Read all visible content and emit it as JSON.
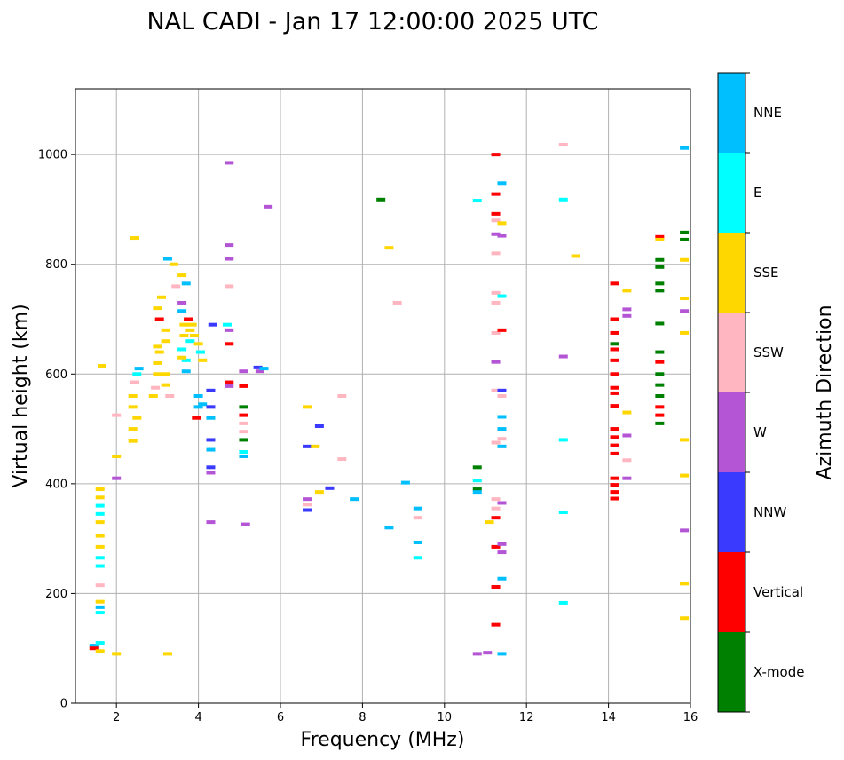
{
  "chart_data": {
    "type": "scatter",
    "title": "NAL CADI - Jan 17 12:00:00 2025 UTC",
    "xlabel": "Frequency (MHz)",
    "ylabel": "Virtual height (km)",
    "xlim": [
      1,
      16
    ],
    "ylim": [
      0,
      1120
    ],
    "xticks": [
      2,
      4,
      6,
      8,
      10,
      12,
      14,
      16
    ],
    "yticks": [
      0,
      200,
      400,
      600,
      800,
      1000
    ],
    "grid": true,
    "colorbar": {
      "label": "Azimuth Direction",
      "categories": [
        {
          "name": "X-mode",
          "color": "#008000"
        },
        {
          "name": "Vertical",
          "color": "#ff0000"
        },
        {
          "name": "NNW",
          "color": "#3a3aff"
        },
        {
          "name": "W",
          "color": "#b455d6"
        },
        {
          "name": "SSW",
          "color": "#ffb6c1"
        },
        {
          "name": "SSE",
          "color": "#ffd700"
        },
        {
          "name": "E",
          "color": "#00ffff"
        },
        {
          "name": "NNE",
          "color": "#00bfff"
        }
      ]
    },
    "points": [
      {
        "f": 1.45,
        "h": 105,
        "d": "NNE"
      },
      {
        "f": 1.45,
        "h": 100,
        "d": "Vertical"
      },
      {
        "f": 1.6,
        "h": 95,
        "d": "SSE"
      },
      {
        "f": 1.6,
        "h": 110,
        "d": "E"
      },
      {
        "f": 1.6,
        "h": 165,
        "d": "E"
      },
      {
        "f": 1.6,
        "h": 175,
        "d": "NNE"
      },
      {
        "f": 1.6,
        "h": 185,
        "d": "SSE"
      },
      {
        "f": 1.6,
        "h": 215,
        "d": "SSW"
      },
      {
        "f": 1.6,
        "h": 250,
        "d": "E"
      },
      {
        "f": 1.6,
        "h": 265,
        "d": "E"
      },
      {
        "f": 1.6,
        "h": 285,
        "d": "SSE"
      },
      {
        "f": 1.6,
        "h": 305,
        "d": "SSE"
      },
      {
        "f": 1.6,
        "h": 330,
        "d": "SSE"
      },
      {
        "f": 1.6,
        "h": 345,
        "d": "E"
      },
      {
        "f": 1.6,
        "h": 360,
        "d": "E"
      },
      {
        "f": 1.6,
        "h": 375,
        "d": "SSE"
      },
      {
        "f": 1.6,
        "h": 390,
        "d": "SSE"
      },
      {
        "f": 1.65,
        "h": 615,
        "d": "SSE"
      },
      {
        "f": 2.0,
        "h": 90,
        "d": "SSE"
      },
      {
        "f": 2.0,
        "h": 410,
        "d": "W"
      },
      {
        "f": 2.0,
        "h": 450,
        "d": "SSE"
      },
      {
        "f": 2.0,
        "h": 525,
        "d": "SSW"
      },
      {
        "f": 2.4,
        "h": 478,
        "d": "SSE"
      },
      {
        "f": 2.4,
        "h": 500,
        "d": "SSE"
      },
      {
        "f": 2.4,
        "h": 540,
        "d": "SSE"
      },
      {
        "f": 2.4,
        "h": 560,
        "d": "SSE"
      },
      {
        "f": 2.45,
        "h": 585,
        "d": "SSW"
      },
      {
        "f": 2.5,
        "h": 520,
        "d": "SSE"
      },
      {
        "f": 2.5,
        "h": 600,
        "d": "E"
      },
      {
        "f": 2.55,
        "h": 610,
        "d": "NNE"
      },
      {
        "f": 2.45,
        "h": 848,
        "d": "SSE"
      },
      {
        "f": 2.9,
        "h": 560,
        "d": "SSE"
      },
      {
        "f": 2.95,
        "h": 575,
        "d": "SSW"
      },
      {
        "f": 3.0,
        "h": 600,
        "d": "SSE"
      },
      {
        "f": 3.0,
        "h": 620,
        "d": "SSE"
      },
      {
        "f": 3.05,
        "h": 640,
        "d": "SSE"
      },
      {
        "f": 3.0,
        "h": 650,
        "d": "SSE"
      },
      {
        "f": 3.05,
        "h": 700,
        "d": "Vertical"
      },
      {
        "f": 3.0,
        "h": 720,
        "d": "SSE"
      },
      {
        "f": 3.1,
        "h": 740,
        "d": "SSE"
      },
      {
        "f": 3.2,
        "h": 680,
        "d": "SSE"
      },
      {
        "f": 3.2,
        "h": 660,
        "d": "SSE"
      },
      {
        "f": 3.2,
        "h": 600,
        "d": "SSE"
      },
      {
        "f": 3.2,
        "h": 580,
        "d": "SSE"
      },
      {
        "f": 3.3,
        "h": 560,
        "d": "SSW"
      },
      {
        "f": 3.25,
        "h": 810,
        "d": "NNE"
      },
      {
        "f": 3.4,
        "h": 800,
        "d": "SSE"
      },
      {
        "f": 3.45,
        "h": 760,
        "d": "SSW"
      },
      {
        "f": 3.6,
        "h": 730,
        "d": "W"
      },
      {
        "f": 3.6,
        "h": 715,
        "d": "NNE"
      },
      {
        "f": 3.65,
        "h": 690,
        "d": "SSE"
      },
      {
        "f": 3.65,
        "h": 670,
        "d": "SSE"
      },
      {
        "f": 3.6,
        "h": 645,
        "d": "E"
      },
      {
        "f": 3.7,
        "h": 625,
        "d": "E"
      },
      {
        "f": 3.7,
        "h": 605,
        "d": "NNE"
      },
      {
        "f": 3.6,
        "h": 630,
        "d": "SSE"
      },
      {
        "f": 3.75,
        "h": 700,
        "d": "Vertical"
      },
      {
        "f": 3.8,
        "h": 680,
        "d": "SSE"
      },
      {
        "f": 3.8,
        "h": 660,
        "d": "E"
      },
      {
        "f": 3.85,
        "h": 690,
        "d": "SSE"
      },
      {
        "f": 3.9,
        "h": 670,
        "d": "SSE"
      },
      {
        "f": 3.7,
        "h": 765,
        "d": "NNE"
      },
      {
        "f": 3.6,
        "h": 780,
        "d": "SSE"
      },
      {
        "f": 3.25,
        "h": 90,
        "d": "SSE"
      },
      {
        "f": 4.0,
        "h": 655,
        "d": "SSE"
      },
      {
        "f": 4.05,
        "h": 640,
        "d": "E"
      },
      {
        "f": 4.0,
        "h": 560,
        "d": "NNE"
      },
      {
        "f": 4.0,
        "h": 540,
        "d": "NNE"
      },
      {
        "f": 4.1,
        "h": 545,
        "d": "NNE"
      },
      {
        "f": 3.95,
        "h": 520,
        "d": "Vertical"
      },
      {
        "f": 4.1,
        "h": 625,
        "d": "SSE"
      },
      {
        "f": 4.3,
        "h": 570,
        "d": "NNW"
      },
      {
        "f": 4.3,
        "h": 540,
        "d": "NNW"
      },
      {
        "f": 4.3,
        "h": 520,
        "d": "NNE"
      },
      {
        "f": 4.3,
        "h": 480,
        "d": "NNW"
      },
      {
        "f": 4.3,
        "h": 462,
        "d": "NNE"
      },
      {
        "f": 4.3,
        "h": 430,
        "d": "NNW"
      },
      {
        "f": 4.3,
        "h": 420,
        "d": "W"
      },
      {
        "f": 4.3,
        "h": 330,
        "d": "W"
      },
      {
        "f": 4.35,
        "h": 690,
        "d": "NNW"
      },
      {
        "f": 4.75,
        "h": 985,
        "d": "W"
      },
      {
        "f": 4.75,
        "h": 835,
        "d": "W"
      },
      {
        "f": 4.75,
        "h": 810,
        "d": "W"
      },
      {
        "f": 4.75,
        "h": 760,
        "d": "SSW"
      },
      {
        "f": 4.7,
        "h": 690,
        "d": "E"
      },
      {
        "f": 4.75,
        "h": 680,
        "d": "W"
      },
      {
        "f": 4.75,
        "h": 655,
        "d": "Vertical"
      },
      {
        "f": 4.75,
        "h": 585,
        "d": "Vertical"
      },
      {
        "f": 4.75,
        "h": 578,
        "d": "W"
      },
      {
        "f": 5.1,
        "h": 605,
        "d": "W"
      },
      {
        "f": 5.1,
        "h": 578,
        "d": "Vertical"
      },
      {
        "f": 5.1,
        "h": 540,
        "d": "X-mode"
      },
      {
        "f": 5.1,
        "h": 525,
        "d": "Vertical"
      },
      {
        "f": 5.1,
        "h": 510,
        "d": "SSW"
      },
      {
        "f": 5.1,
        "h": 495,
        "d": "SSW"
      },
      {
        "f": 5.1,
        "h": 480,
        "d": "X-mode"
      },
      {
        "f": 5.1,
        "h": 458,
        "d": "E"
      },
      {
        "f": 5.1,
        "h": 450,
        "d": "NNE"
      },
      {
        "f": 5.15,
        "h": 326,
        "d": "W"
      },
      {
        "f": 5.45,
        "h": 612,
        "d": "NNW"
      },
      {
        "f": 5.5,
        "h": 605,
        "d": "W"
      },
      {
        "f": 5.6,
        "h": 610,
        "d": "NNE"
      },
      {
        "f": 5.7,
        "h": 905,
        "d": "W"
      },
      {
        "f": 6.65,
        "h": 372,
        "d": "W"
      },
      {
        "f": 6.65,
        "h": 362,
        "d": "SSW"
      },
      {
        "f": 6.65,
        "h": 352,
        "d": "NNW"
      },
      {
        "f": 6.65,
        "h": 468,
        "d": "NNW"
      },
      {
        "f": 6.65,
        "h": 540,
        "d": "SSE"
      },
      {
        "f": 6.85,
        "h": 468,
        "d": "SSE"
      },
      {
        "f": 6.95,
        "h": 505,
        "d": "NNW"
      },
      {
        "f": 6.95,
        "h": 385,
        "d": "SSE"
      },
      {
        "f": 7.2,
        "h": 392,
        "d": "NNW"
      },
      {
        "f": 7.5,
        "h": 445,
        "d": "SSW"
      },
      {
        "f": 7.5,
        "h": 560,
        "d": "SSW"
      },
      {
        "f": 7.8,
        "h": 372,
        "d": "NNE"
      },
      {
        "f": 8.45,
        "h": 918,
        "d": "X-mode"
      },
      {
        "f": 8.65,
        "h": 830,
        "d": "SSE"
      },
      {
        "f": 8.65,
        "h": 320,
        "d": "NNE"
      },
      {
        "f": 8.85,
        "h": 730,
        "d": "SSW"
      },
      {
        "f": 9.05,
        "h": 402,
        "d": "NNE"
      },
      {
        "f": 9.35,
        "h": 355,
        "d": "NNE"
      },
      {
        "f": 9.35,
        "h": 338,
        "d": "SSW"
      },
      {
        "f": 9.35,
        "h": 293,
        "d": "NNE"
      },
      {
        "f": 9.35,
        "h": 265,
        "d": "E"
      },
      {
        "f": 10.8,
        "h": 916,
        "d": "E"
      },
      {
        "f": 10.8,
        "h": 430,
        "d": "X-mode"
      },
      {
        "f": 10.8,
        "h": 406,
        "d": "E"
      },
      {
        "f": 10.8,
        "h": 390,
        "d": "X-mode"
      },
      {
        "f": 10.8,
        "h": 385,
        "d": "NNE"
      },
      {
        "f": 10.8,
        "h": 90,
        "d": "W"
      },
      {
        "f": 11.05,
        "h": 92,
        "d": "W"
      },
      {
        "f": 11.1,
        "h": 330,
        "d": "SSE"
      },
      {
        "f": 11.25,
        "h": 1000,
        "d": "Vertical"
      },
      {
        "f": 11.25,
        "h": 928,
        "d": "Vertical"
      },
      {
        "f": 11.25,
        "h": 892,
        "d": "Vertical"
      },
      {
        "f": 11.25,
        "h": 880,
        "d": "SSW"
      },
      {
        "f": 11.25,
        "h": 855,
        "d": "W"
      },
      {
        "f": 11.25,
        "h": 820,
        "d": "SSW"
      },
      {
        "f": 11.25,
        "h": 748,
        "d": "SSW"
      },
      {
        "f": 11.25,
        "h": 730,
        "d": "SSW"
      },
      {
        "f": 11.25,
        "h": 675,
        "d": "SSW"
      },
      {
        "f": 11.25,
        "h": 622,
        "d": "W"
      },
      {
        "f": 11.25,
        "h": 570,
        "d": "SSW"
      },
      {
        "f": 11.25,
        "h": 475,
        "d": "SSW"
      },
      {
        "f": 11.25,
        "h": 372,
        "d": "SSW"
      },
      {
        "f": 11.25,
        "h": 355,
        "d": "SSW"
      },
      {
        "f": 11.25,
        "h": 338,
        "d": "Vertical"
      },
      {
        "f": 11.25,
        "h": 285,
        "d": "Vertical"
      },
      {
        "f": 11.25,
        "h": 212,
        "d": "Vertical"
      },
      {
        "f": 11.25,
        "h": 143,
        "d": "Vertical"
      },
      {
        "f": 11.4,
        "h": 948,
        "d": "NNE"
      },
      {
        "f": 11.4,
        "h": 875,
        "d": "SSE"
      },
      {
        "f": 11.4,
        "h": 852,
        "d": "W"
      },
      {
        "f": 11.4,
        "h": 742,
        "d": "E"
      },
      {
        "f": 11.4,
        "h": 680,
        "d": "Vertical"
      },
      {
        "f": 11.4,
        "h": 570,
        "d": "NNW"
      },
      {
        "f": 11.4,
        "h": 560,
        "d": "SSW"
      },
      {
        "f": 11.4,
        "h": 522,
        "d": "NNE"
      },
      {
        "f": 11.4,
        "h": 500,
        "d": "NNE"
      },
      {
        "f": 11.4,
        "h": 482,
        "d": "SSW"
      },
      {
        "f": 11.4,
        "h": 468,
        "d": "NNE"
      },
      {
        "f": 11.4,
        "h": 365,
        "d": "W"
      },
      {
        "f": 11.4,
        "h": 290,
        "d": "W"
      },
      {
        "f": 11.4,
        "h": 275,
        "d": "W"
      },
      {
        "f": 11.4,
        "h": 227,
        "d": "NNE"
      },
      {
        "f": 11.4,
        "h": 90,
        "d": "NNE"
      },
      {
        "f": 12.9,
        "h": 1018,
        "d": "SSW"
      },
      {
        "f": 12.9,
        "h": 918,
        "d": "E"
      },
      {
        "f": 12.9,
        "h": 632,
        "d": "W"
      },
      {
        "f": 12.9,
        "h": 480,
        "d": "E"
      },
      {
        "f": 12.9,
        "h": 348,
        "d": "E"
      },
      {
        "f": 12.9,
        "h": 183,
        "d": "E"
      },
      {
        "f": 13.2,
        "h": 815,
        "d": "SSE"
      },
      {
        "f": 14.15,
        "h": 765,
        "d": "Vertical"
      },
      {
        "f": 14.15,
        "h": 700,
        "d": "Vertical"
      },
      {
        "f": 14.15,
        "h": 675,
        "d": "Vertical"
      },
      {
        "f": 14.15,
        "h": 655,
        "d": "X-mode"
      },
      {
        "f": 14.15,
        "h": 645,
        "d": "Vertical"
      },
      {
        "f": 14.15,
        "h": 625,
        "d": "Vertical"
      },
      {
        "f": 14.15,
        "h": 600,
        "d": "Vertical"
      },
      {
        "f": 14.15,
        "h": 575,
        "d": "Vertical"
      },
      {
        "f": 14.15,
        "h": 565,
        "d": "Vertical"
      },
      {
        "f": 14.15,
        "h": 542,
        "d": "Vertical"
      },
      {
        "f": 14.15,
        "h": 500,
        "d": "Vertical"
      },
      {
        "f": 14.15,
        "h": 485,
        "d": "Vertical"
      },
      {
        "f": 14.15,
        "h": 470,
        "d": "Vertical"
      },
      {
        "f": 14.15,
        "h": 455,
        "d": "Vertical"
      },
      {
        "f": 14.15,
        "h": 410,
        "d": "Vertical"
      },
      {
        "f": 14.15,
        "h": 398,
        "d": "Vertical"
      },
      {
        "f": 14.15,
        "h": 385,
        "d": "Vertical"
      },
      {
        "f": 14.15,
        "h": 373,
        "d": "Vertical"
      },
      {
        "f": 14.45,
        "h": 752,
        "d": "SSE"
      },
      {
        "f": 14.45,
        "h": 718,
        "d": "W"
      },
      {
        "f": 14.45,
        "h": 706,
        "d": "W"
      },
      {
        "f": 14.45,
        "h": 530,
        "d": "SSE"
      },
      {
        "f": 14.45,
        "h": 488,
        "d": "W"
      },
      {
        "f": 14.45,
        "h": 443,
        "d": "SSW"
      },
      {
        "f": 14.45,
        "h": 410,
        "d": "W"
      },
      {
        "f": 15.25,
        "h": 850,
        "d": "Vertical"
      },
      {
        "f": 15.25,
        "h": 845,
        "d": "SSE"
      },
      {
        "f": 15.25,
        "h": 808,
        "d": "X-mode"
      },
      {
        "f": 15.25,
        "h": 795,
        "d": "X-mode"
      },
      {
        "f": 15.25,
        "h": 765,
        "d": "X-mode"
      },
      {
        "f": 15.25,
        "h": 752,
        "d": "X-mode"
      },
      {
        "f": 15.25,
        "h": 692,
        "d": "X-mode"
      },
      {
        "f": 15.25,
        "h": 640,
        "d": "X-mode"
      },
      {
        "f": 15.25,
        "h": 622,
        "d": "Vertical"
      },
      {
        "f": 15.25,
        "h": 600,
        "d": "X-mode"
      },
      {
        "f": 15.25,
        "h": 580,
        "d": "X-mode"
      },
      {
        "f": 15.25,
        "h": 560,
        "d": "X-mode"
      },
      {
        "f": 15.25,
        "h": 540,
        "d": "Vertical"
      },
      {
        "f": 15.25,
        "h": 525,
        "d": "Vertical"
      },
      {
        "f": 15.25,
        "h": 510,
        "d": "X-mode"
      },
      {
        "f": 15.85,
        "h": 1012,
        "d": "NNE"
      },
      {
        "f": 15.85,
        "h": 858,
        "d": "X-mode"
      },
      {
        "f": 15.85,
        "h": 845,
        "d": "X-mode"
      },
      {
        "f": 15.85,
        "h": 808,
        "d": "SSE"
      },
      {
        "f": 15.85,
        "h": 738,
        "d": "SSE"
      },
      {
        "f": 15.85,
        "h": 715,
        "d": "W"
      },
      {
        "f": 15.85,
        "h": 675,
        "d": "SSE"
      },
      {
        "f": 15.85,
        "h": 480,
        "d": "SSE"
      },
      {
        "f": 15.85,
        "h": 415,
        "d": "SSE"
      },
      {
        "f": 15.85,
        "h": 315,
        "d": "W"
      },
      {
        "f": 15.85,
        "h": 218,
        "d": "SSE"
      },
      {
        "f": 15.85,
        "h": 155,
        "d": "SSE"
      }
    ]
  }
}
